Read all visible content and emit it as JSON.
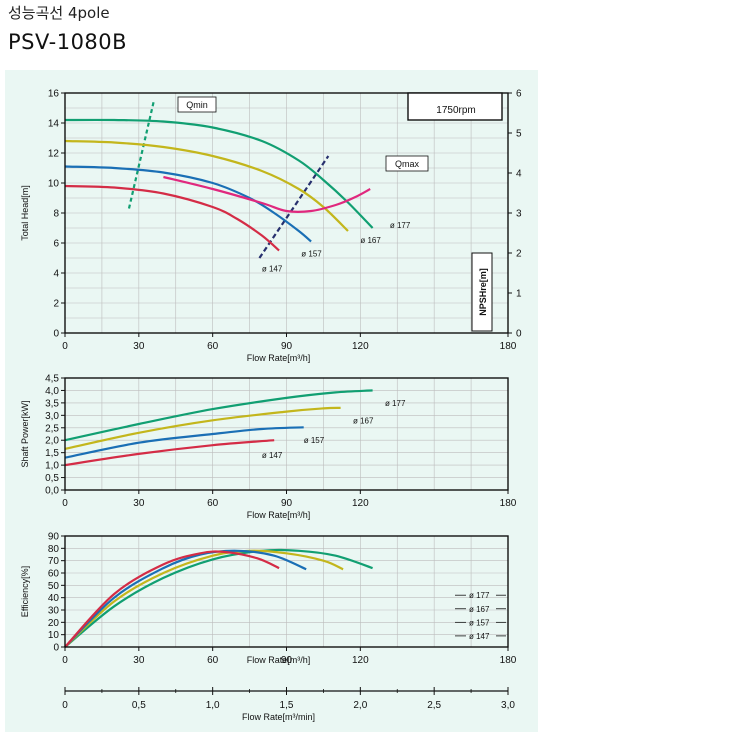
{
  "header": {
    "subtitle": "성능곡선 4pole",
    "model": "PSV-1080B"
  },
  "chart_data": [
    {
      "type": "line",
      "name": "head",
      "ylabel": "Total Head[m]",
      "xlabel": "Flow Rate[m³/h]",
      "xlim": [
        0,
        180
      ],
      "ylim": [
        0,
        16
      ],
      "xticks": [
        "0",
        "30",
        "60",
        "90",
        "120",
        "180"
      ],
      "yticks": [
        "0",
        "2",
        "4",
        "6",
        "8",
        "10",
        "12",
        "14",
        "16"
      ],
      "y2label": "NPSHre[m]",
      "y2lim": [
        0,
        6
      ],
      "y2ticks": [
        "0",
        "1",
        "2",
        "3",
        "4",
        "5",
        "6"
      ],
      "speed_label": "1750rpm",
      "qmin_label": "Qmin",
      "qmax_label": "Qmax",
      "grid": true,
      "series": [
        {
          "name": "ø 177",
          "color": "#119f72",
          "x": [
            0,
            20,
            40,
            60,
            80,
            95,
            105,
            115,
            125
          ],
          "y": [
            14.2,
            14.2,
            14.1,
            13.7,
            12.8,
            11.5,
            10.2,
            8.7,
            7.0
          ]
        },
        {
          "name": "ø 167",
          "color": "#c3b61c",
          "x": [
            0,
            20,
            40,
            60,
            80,
            95,
            105,
            115
          ],
          "y": [
            12.8,
            12.7,
            12.4,
            11.8,
            10.8,
            9.6,
            8.4,
            6.8
          ]
        },
        {
          "name": "ø 157",
          "color": "#1a6fb5",
          "x": [
            0,
            20,
            40,
            60,
            75,
            85,
            95,
            100
          ],
          "y": [
            11.1,
            11.0,
            10.7,
            10.0,
            9.0,
            8.0,
            6.8,
            6.1
          ]
        },
        {
          "name": "ø 147",
          "color": "#d42c46",
          "x": [
            0,
            20,
            40,
            60,
            70,
            80,
            87
          ],
          "y": [
            9.8,
            9.7,
            9.3,
            8.4,
            7.6,
            6.5,
            5.5
          ]
        },
        {
          "name": "NPSHre",
          "color": "#e0287e",
          "x": [
            40,
            60,
            80,
            90,
            100,
            110,
            118,
            124
          ],
          "y": [
            3.9,
            3.6,
            3.25,
            3.05,
            3.05,
            3.2,
            3.4,
            3.6
          ]
        }
      ],
      "qmin_line": {
        "x": [
          26,
          36
        ],
        "y": [
          8.3,
          15.4
        ]
      },
      "qmax_line": {
        "x": [
          79,
          107
        ],
        "y": [
          5.0,
          11.8
        ]
      },
      "labels": [
        {
          "text": "ø 177",
          "x": 132,
          "y": 7.2
        },
        {
          "text": "ø 167",
          "x": 120,
          "y": 6.2
        },
        {
          "text": "ø 157",
          "x": 96,
          "y": 5.3
        },
        {
          "text": "ø 147",
          "x": 80,
          "y": 4.3
        }
      ]
    },
    {
      "type": "line",
      "name": "power",
      "ylabel": "Shaft Power[kW]",
      "xlabel": "Flow Rate[m³/h]",
      "xlim": [
        0,
        180
      ],
      "ylim": [
        0,
        4.5
      ],
      "xticks": [
        "0",
        "30",
        "60",
        "90",
        "120",
        "180"
      ],
      "yticks": [
        "0,0",
        "0,5",
        "1,0",
        "1,5",
        "2,0",
        "2,5",
        "3,0",
        "3,5",
        "4,0",
        "4,5"
      ],
      "grid": true,
      "series": [
        {
          "name": "ø 177",
          "color": "#119f72",
          "x": [
            0,
            30,
            60,
            90,
            110,
            125
          ],
          "y": [
            2.0,
            2.65,
            3.25,
            3.7,
            3.92,
            4.0
          ]
        },
        {
          "name": "ø 167",
          "color": "#c3b61c",
          "x": [
            0,
            30,
            60,
            90,
            105,
            112
          ],
          "y": [
            1.65,
            2.3,
            2.8,
            3.15,
            3.28,
            3.3
          ]
        },
        {
          "name": "ø 157",
          "color": "#1a6fb5",
          "x": [
            0,
            30,
            60,
            80,
            97
          ],
          "y": [
            1.3,
            1.9,
            2.25,
            2.45,
            2.52
          ]
        },
        {
          "name": "ø 147",
          "color": "#d42c46",
          "x": [
            0,
            30,
            60,
            85
          ],
          "y": [
            1.0,
            1.45,
            1.8,
            2.0
          ]
        }
      ],
      "labels": [
        {
          "text": "ø 177",
          "x": 130,
          "y": 3.5
        },
        {
          "text": "ø 167",
          "x": 117,
          "y": 2.8
        },
        {
          "text": "ø 157",
          "x": 97,
          "y": 2.0
        },
        {
          "text": "ø 147",
          "x": 80,
          "y": 1.4
        }
      ]
    },
    {
      "type": "line",
      "name": "efficiency",
      "ylabel": "Efficiency[%]",
      "xlabel": "Flow Rate[m³/h]",
      "xlim": [
        0,
        180
      ],
      "ylim": [
        0,
        90
      ],
      "xticks": [
        "0",
        "30",
        "60",
        "90",
        "120",
        "180"
      ],
      "yticks": [
        "0",
        "10",
        "20",
        "30",
        "40",
        "50",
        "60",
        "70",
        "80",
        "90"
      ],
      "grid": true,
      "series": [
        {
          "name": "ø 177",
          "color": "#119f72",
          "x": [
            0,
            20,
            40,
            60,
            80,
            95,
            110,
            125
          ],
          "y": [
            0,
            33,
            56,
            71,
            78,
            78,
            74,
            64
          ]
        },
        {
          "name": "ø 167",
          "color": "#c3b61c",
          "x": [
            0,
            20,
            40,
            60,
            75,
            90,
            105,
            113
          ],
          "y": [
            0,
            37,
            60,
            74,
            78,
            76,
            70,
            63
          ]
        },
        {
          "name": "ø 157",
          "color": "#1a6fb5",
          "x": [
            0,
            20,
            40,
            55,
            70,
            85,
            98
          ],
          "y": [
            0,
            40,
            64,
            75,
            78,
            74,
            63
          ]
        },
        {
          "name": "ø 147",
          "color": "#d42c46",
          "x": [
            0,
            20,
            40,
            55,
            65,
            78,
            87
          ],
          "y": [
            0,
            43,
            67,
            76,
            77,
            72,
            64
          ]
        }
      ],
      "legend_items": [
        "ø 177",
        "ø 167",
        "ø 157",
        "ø 147"
      ],
      "legend_y": [
        42,
        31,
        20,
        9
      ]
    }
  ],
  "bottom_axis": {
    "xlabel": "Flow Rate[m³/min]",
    "xlim": [
      0,
      3
    ],
    "xticks": [
      "0",
      "0,5",
      "1,0",
      "1,5",
      "2,0",
      "2,5",
      "3,0"
    ],
    "xvals": [
      0,
      0.5,
      1.0,
      1.5,
      2.0,
      2.5,
      3.0
    ]
  },
  "colors": {
    "background_panel": "#eaf7f3",
    "frame": "#111111",
    "grid": "#bdbdbd"
  }
}
